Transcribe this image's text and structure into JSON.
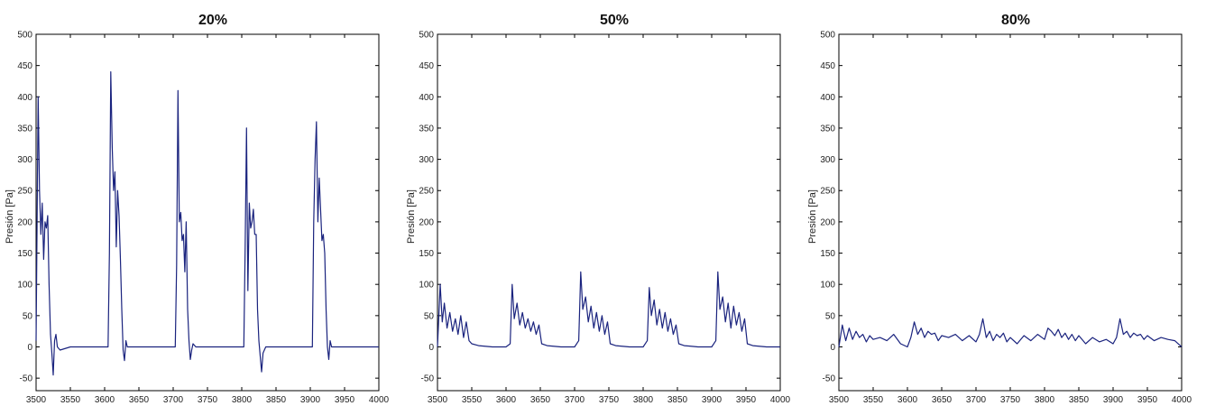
{
  "chart_data": [
    {
      "type": "line",
      "title": "20%",
      "xlabel": "",
      "ylabel": "Presión [Pa]",
      "xlim": [
        3500,
        4000
      ],
      "ylim": [
        -70,
        500
      ],
      "xticks": [
        3500,
        3550,
        3600,
        3650,
        3700,
        3750,
        3800,
        3850,
        3900,
        3950,
        4000
      ],
      "yticks": [
        -50,
        0,
        50,
        100,
        150,
        200,
        250,
        300,
        350,
        400,
        450,
        500
      ],
      "grid": false,
      "color": "#1a237e",
      "x": [
        3500,
        3503,
        3505,
        3507,
        3509,
        3511,
        3513,
        3515,
        3517,
        3519,
        3521,
        3523,
        3525,
        3527,
        3529,
        3531,
        3535,
        3550,
        3570,
        3590,
        3605,
        3607,
        3609,
        3611,
        3613,
        3615,
        3617,
        3619,
        3621,
        3623,
        3625,
        3627,
        3629,
        3631,
        3633,
        3650,
        3670,
        3690,
        3703,
        3705,
        3707,
        3709,
        3711,
        3713,
        3715,
        3717,
        3719,
        3721,
        3723,
        3725,
        3727,
        3729,
        3733,
        3750,
        3770,
        3790,
        3803,
        3805,
        3807,
        3809,
        3811,
        3813,
        3815,
        3817,
        3819,
        3821,
        3823,
        3825,
        3827,
        3829,
        3831,
        3835,
        3850,
        3870,
        3890,
        3903,
        3905,
        3907,
        3909,
        3911,
        3913,
        3915,
        3917,
        3919,
        3921,
        3923,
        3925,
        3927,
        3929,
        3931,
        3935,
        3960,
        3980,
        4000
      ],
      "y": [
        10,
        400,
        250,
        180,
        230,
        140,
        200,
        190,
        210,
        100,
        20,
        -10,
        -45,
        10,
        20,
        0,
        -5,
        0,
        0,
        0,
        0,
        150,
        440,
        320,
        250,
        280,
        160,
        250,
        210,
        140,
        60,
        -5,
        -22,
        10,
        0,
        0,
        0,
        0,
        0,
        130,
        410,
        200,
        215,
        170,
        180,
        120,
        200,
        60,
        10,
        -20,
        -5,
        5,
        0,
        0,
        0,
        0,
        0,
        160,
        350,
        90,
        230,
        190,
        200,
        220,
        180,
        180,
        60,
        10,
        -15,
        -40,
        -10,
        0,
        0,
        0,
        0,
        0,
        200,
        300,
        360,
        200,
        270,
        220,
        170,
        180,
        150,
        60,
        0,
        -20,
        10,
        0,
        0,
        0,
        0,
        0
      ]
    },
    {
      "type": "line",
      "title": "50%",
      "xlabel": "",
      "ylabel": "Presión [Pa]",
      "xlim": [
        3500,
        4000
      ],
      "ylim": [
        -70,
        500
      ],
      "xticks": [
        3500,
        3550,
        3600,
        3650,
        3700,
        3750,
        3800,
        3850,
        3900,
        3950,
        4000
      ],
      "yticks": [
        -50,
        0,
        50,
        100,
        150,
        200,
        250,
        300,
        350,
        400,
        450,
        500
      ],
      "grid": false,
      "color": "#1a237e",
      "x": [
        3500,
        3504,
        3507,
        3510,
        3514,
        3518,
        3522,
        3526,
        3530,
        3534,
        3538,
        3542,
        3546,
        3550,
        3560,
        3580,
        3600,
        3606,
        3609,
        3612,
        3616,
        3620,
        3624,
        3628,
        3632,
        3636,
        3640,
        3644,
        3648,
        3652,
        3660,
        3680,
        3700,
        3706,
        3709,
        3712,
        3716,
        3720,
        3724,
        3728,
        3732,
        3736,
        3740,
        3744,
        3748,
        3752,
        3760,
        3780,
        3800,
        3806,
        3809,
        3812,
        3816,
        3820,
        3824,
        3828,
        3832,
        3836,
        3840,
        3844,
        3848,
        3852,
        3860,
        3880,
        3900,
        3906,
        3909,
        3912,
        3916,
        3920,
        3924,
        3928,
        3932,
        3936,
        3940,
        3944,
        3948,
        3952,
        3960,
        3980,
        4000
      ],
      "y": [
        0,
        100,
        40,
        70,
        30,
        55,
        25,
        45,
        20,
        50,
        15,
        40,
        10,
        5,
        2,
        0,
        0,
        5,
        100,
        45,
        70,
        35,
        55,
        30,
        45,
        25,
        40,
        20,
        35,
        5,
        2,
        0,
        0,
        10,
        120,
        60,
        80,
        40,
        65,
        30,
        55,
        25,
        50,
        20,
        40,
        5,
        2,
        0,
        0,
        10,
        95,
        50,
        75,
        35,
        60,
        30,
        55,
        25,
        45,
        20,
        35,
        5,
        2,
        0,
        0,
        10,
        120,
        60,
        80,
        40,
        70,
        30,
        65,
        35,
        55,
        25,
        45,
        5,
        2,
        0,
        0
      ]
    },
    {
      "type": "line",
      "title": "80%",
      "xlabel": "",
      "ylabel": "Presión [Pa]",
      "xlim": [
        3500,
        4000
      ],
      "ylim": [
        -70,
        500
      ],
      "xticks": [
        3500,
        3550,
        3600,
        3650,
        3700,
        3750,
        3800,
        3850,
        3900,
        3950,
        4000
      ],
      "yticks": [
        -50,
        0,
        50,
        100,
        150,
        200,
        250,
        300,
        350,
        400,
        450,
        500
      ],
      "grid": false,
      "color": "#1a237e",
      "x": [
        3500,
        3505,
        3510,
        3515,
        3520,
        3525,
        3530,
        3535,
        3540,
        3545,
        3550,
        3560,
        3570,
        3580,
        3590,
        3600,
        3605,
        3610,
        3615,
        3620,
        3625,
        3630,
        3635,
        3640,
        3645,
        3650,
        3660,
        3670,
        3680,
        3690,
        3700,
        3705,
        3710,
        3715,
        3720,
        3725,
        3730,
        3735,
        3740,
        3745,
        3750,
        3760,
        3770,
        3780,
        3790,
        3800,
        3805,
        3810,
        3815,
        3820,
        3825,
        3830,
        3835,
        3840,
        3845,
        3850,
        3860,
        3870,
        3880,
        3890,
        3900,
        3905,
        3910,
        3915,
        3920,
        3925,
        3930,
        3935,
        3940,
        3945,
        3950,
        3960,
        3970,
        3980,
        3990,
        4000
      ],
      "y": [
        0,
        35,
        10,
        30,
        12,
        25,
        15,
        20,
        8,
        18,
        12,
        15,
        10,
        20,
        5,
        0,
        15,
        40,
        20,
        30,
        15,
        25,
        20,
        22,
        10,
        18,
        15,
        20,
        10,
        18,
        8,
        20,
        45,
        15,
        25,
        10,
        20,
        15,
        22,
        8,
        15,
        5,
        18,
        10,
        20,
        12,
        30,
        25,
        18,
        28,
        15,
        22,
        12,
        20,
        10,
        18,
        5,
        15,
        8,
        12,
        5,
        15,
        45,
        20,
        25,
        15,
        22,
        18,
        20,
        12,
        18,
        10,
        15,
        12,
        10,
        0
      ]
    }
  ]
}
